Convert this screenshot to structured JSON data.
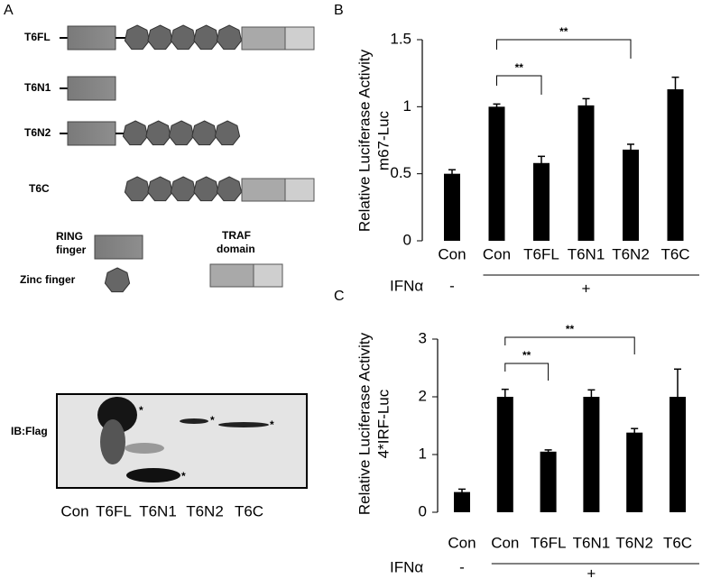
{
  "panel_a": {
    "label": "A",
    "constructs": [
      "T6FL",
      "T6N1",
      "T6N2",
      "T6C"
    ],
    "legend_ring": [
      "RING",
      "finger"
    ],
    "legend_zinc": "Zinc finger",
    "legend_traf": [
      "TRAF",
      "domain"
    ]
  },
  "blot": {
    "antibody": "IB:Flag",
    "asterisks": [
      "*",
      "*",
      "*",
      "*"
    ],
    "lanes": [
      "Con",
      "T6FL",
      "T6N1",
      "T6N2",
      "T6C"
    ]
  },
  "chart_data": [
    {
      "type": "bar",
      "panel_label": "B",
      "y_label": "Relative Luciferase Activity",
      "subtitle": "m67-Luc",
      "categories": [
        "Con",
        "Con",
        "T6FL",
        "T6N1",
        "T6N2",
        "T6C"
      ],
      "values": [
        0.5,
        1.0,
        0.58,
        1.01,
        0.68,
        1.13
      ],
      "errors": [
        0.03,
        0.02,
        0.05,
        0.05,
        0.04,
        0.09
      ],
      "color": "#000000",
      "ylim": [
        0,
        1.5
      ],
      "yticks": [
        0,
        0.5,
        1,
        1.5
      ],
      "treatment": "IFNα",
      "treatment_levels": [
        "-",
        "+"
      ],
      "significance": [
        "**",
        "**"
      ]
    },
    {
      "type": "bar",
      "panel_label": "C",
      "y_label": "Relative Luciferase Activity",
      "subtitle": "4*IRF-Luc",
      "categories": [
        "Con",
        "Con",
        "T6FL",
        "T6N1",
        "T6N2",
        "T6C"
      ],
      "values": [
        0.35,
        2.0,
        1.05,
        2.0,
        1.38,
        2.0
      ],
      "errors": [
        0.05,
        0.13,
        0.03,
        0.12,
        0.07,
        0.48
      ],
      "color": "#000000",
      "ylim": [
        0,
        3
      ],
      "yticks": [
        0,
        1,
        2,
        3
      ],
      "treatment": "IFNα",
      "treatment_levels": [
        "-",
        "+"
      ],
      "significance": [
        "**",
        "**"
      ]
    }
  ]
}
